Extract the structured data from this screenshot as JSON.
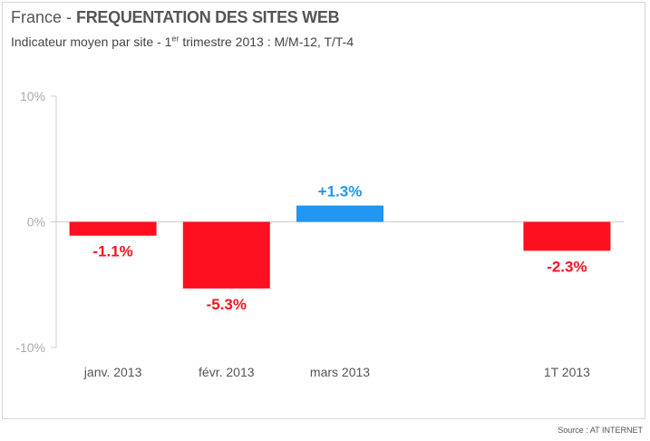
{
  "header": {
    "title_prefix": "France - ",
    "title_main": "FREQUENTATION DES SITES WEB",
    "subtitle_part1": "Indicateur moyen par site - 1",
    "subtitle_sup": "er",
    "subtitle_part2": " trimestre 2013 : M/M-12, T/T-4"
  },
  "footer": {
    "source": "Source : AT INTERNET"
  },
  "colors": {
    "negative": "#ff1020",
    "positive": "#2196f3",
    "axis": "#cccccc",
    "tick_label": "#aaaaaa",
    "category_label": "#555555"
  },
  "chart_data": {
    "type": "bar",
    "categories": [
      "janv. 2013",
      "févr. 2013",
      "mars 2013",
      "",
      "1T 2013"
    ],
    "values": [
      -1.1,
      -5.3,
      1.3,
      null,
      -2.3
    ],
    "data_labels": [
      "-1.1%",
      "-5.3%",
      "+1.3%",
      "",
      "-2.3%"
    ],
    "ylim": [
      -10,
      10
    ],
    "yticks": [
      10,
      0,
      -10
    ],
    "ytick_labels": [
      "10%",
      "0%",
      "-10%"
    ],
    "grid": false,
    "legend": "none"
  }
}
